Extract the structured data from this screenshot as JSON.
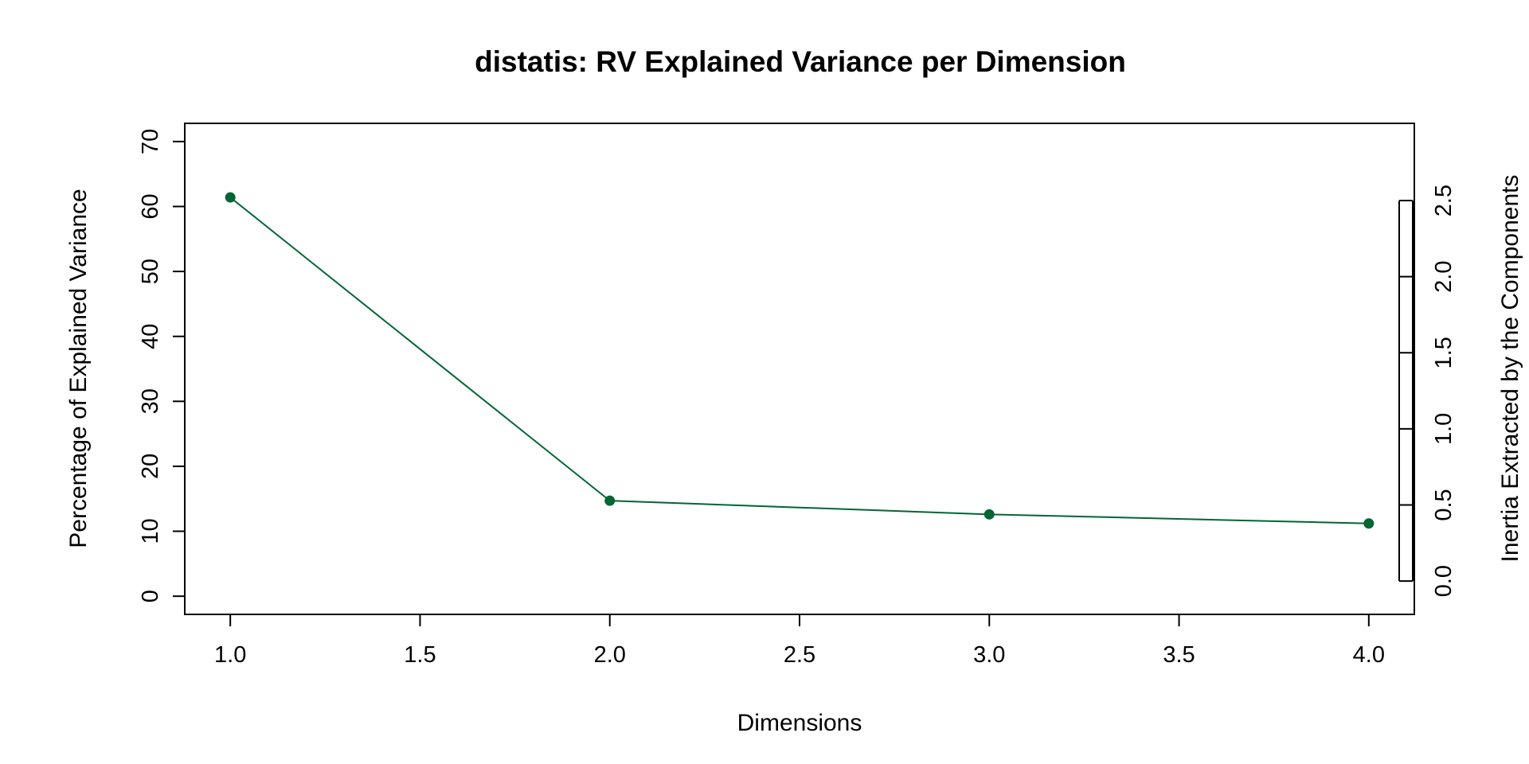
{
  "chart_data": {
    "type": "line",
    "title": "distatis: RV Explained Variance per Dimension",
    "xlabel": "Dimensions",
    "ylabel": "Percentage of Explained Variance",
    "y2label": "Inertia Extracted by the Components",
    "x": [
      1.0,
      2.0,
      3.0,
      4.0
    ],
    "y": [
      61.4,
      14.7,
      12.6,
      11.2
    ],
    "xlim": [
      0.88,
      4.12
    ],
    "ylim": [
      -2.8,
      72.8
    ],
    "xticks": [
      "1.0",
      "1.5",
      "2.0",
      "2.5",
      "3.0",
      "3.5",
      "4.0"
    ],
    "yticks": [
      "0",
      "10",
      "20",
      "30",
      "40",
      "50",
      "60",
      "70"
    ],
    "y2ticks": [
      "0.0",
      "0.5",
      "1.0",
      "1.5",
      "2.0",
      "2.5"
    ],
    "y2_range": [
      0,
      2.5
    ],
    "line_color": "#006633",
    "grid": false,
    "legend": false
  }
}
